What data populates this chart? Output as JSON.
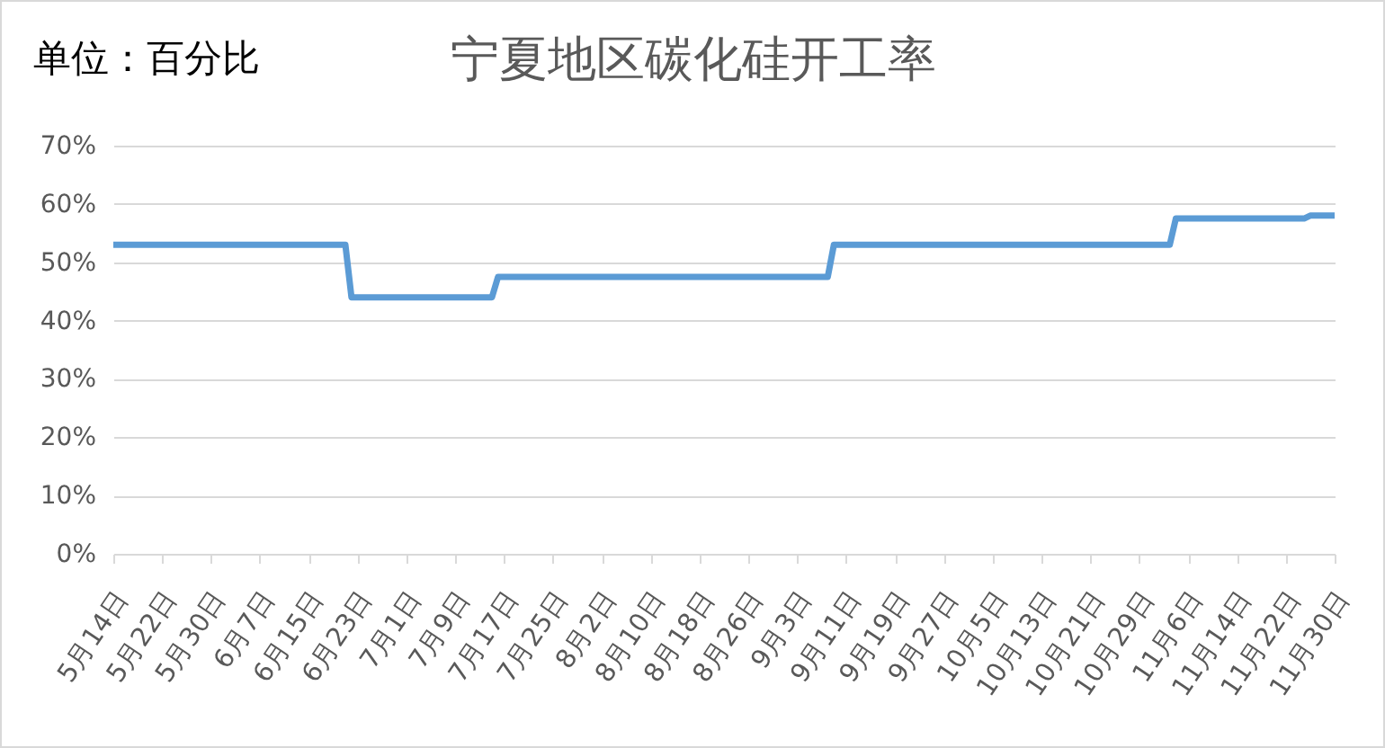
{
  "chart_data": {
    "type": "line",
    "title": "宁夏地区碳化硅开工率",
    "ylabel": "单位：百分比",
    "x": [
      "--05-14",
      "--06-21",
      "--06-22",
      "--07-15",
      "--07-16",
      "--09-08",
      "--09-09",
      "--11-03",
      "--11-04",
      "--11-25",
      "--11-26",
      "--11-30"
    ],
    "series": [
      {
        "color": "#5b9bd5",
        "values": [
          53,
          53,
          44,
          44,
          47.5,
          47.5,
          53,
          53,
          57.5,
          57.5,
          58,
          58
        ]
      }
    ],
    "xlim": [
      "--05-14",
      "--11-30"
    ],
    "xticks": [
      {
        "value": "--05-14",
        "label": "5月14日"
      },
      {
        "value": "--05-22",
        "label": "5月22日"
      },
      {
        "value": "--05-30",
        "label": "5月30日"
      },
      {
        "value": "--06-07",
        "label": "6月7日"
      },
      {
        "value": "--06-15",
        "label": "6月15日"
      },
      {
        "value": "--06-23",
        "label": "6月23日"
      },
      {
        "value": "--07-01",
        "label": "7月1日"
      },
      {
        "value": "--07-09",
        "label": "7月9日"
      },
      {
        "value": "--07-17",
        "label": "7月17日"
      },
      {
        "value": "--07-25",
        "label": "7月25日"
      },
      {
        "value": "--08-02",
        "label": "8月2日"
      },
      {
        "value": "--08-10",
        "label": "8月10日"
      },
      {
        "value": "--08-18",
        "label": "8月18日"
      },
      {
        "value": "--08-26",
        "label": "8月26日"
      },
      {
        "value": "--09-03",
        "label": "9月3日"
      },
      {
        "value": "--09-11",
        "label": "9月11日"
      },
      {
        "value": "--09-19",
        "label": "9月19日"
      },
      {
        "value": "--09-27",
        "label": "9月27日"
      },
      {
        "value": "--10-05",
        "label": "10月5日"
      },
      {
        "value": "--10-13",
        "label": "10月13日"
      },
      {
        "value": "--10-21",
        "label": "10月21日"
      },
      {
        "value": "--10-29",
        "label": "10月29日"
      },
      {
        "value": "--11-06",
        "label": "11月6日"
      },
      {
        "value": "--11-14",
        "label": "11月14日"
      },
      {
        "value": "--11-22",
        "label": "11月22日"
      },
      {
        "value": "--11-30",
        "label": "11月30日"
      }
    ],
    "ylim": [
      0,
      70
    ],
    "yticks": [
      {
        "value": 0,
        "label": "0%"
      },
      {
        "value": 10,
        "label": "10%"
      },
      {
        "value": 20,
        "label": "20%"
      },
      {
        "value": 30,
        "label": "30%"
      },
      {
        "value": 40,
        "label": "40%"
      },
      {
        "value": 50,
        "label": "50%"
      },
      {
        "value": 60,
        "label": "60%"
      },
      {
        "value": 70,
        "label": "70%"
      }
    ],
    "grid": "y",
    "line_style": "solid"
  }
}
